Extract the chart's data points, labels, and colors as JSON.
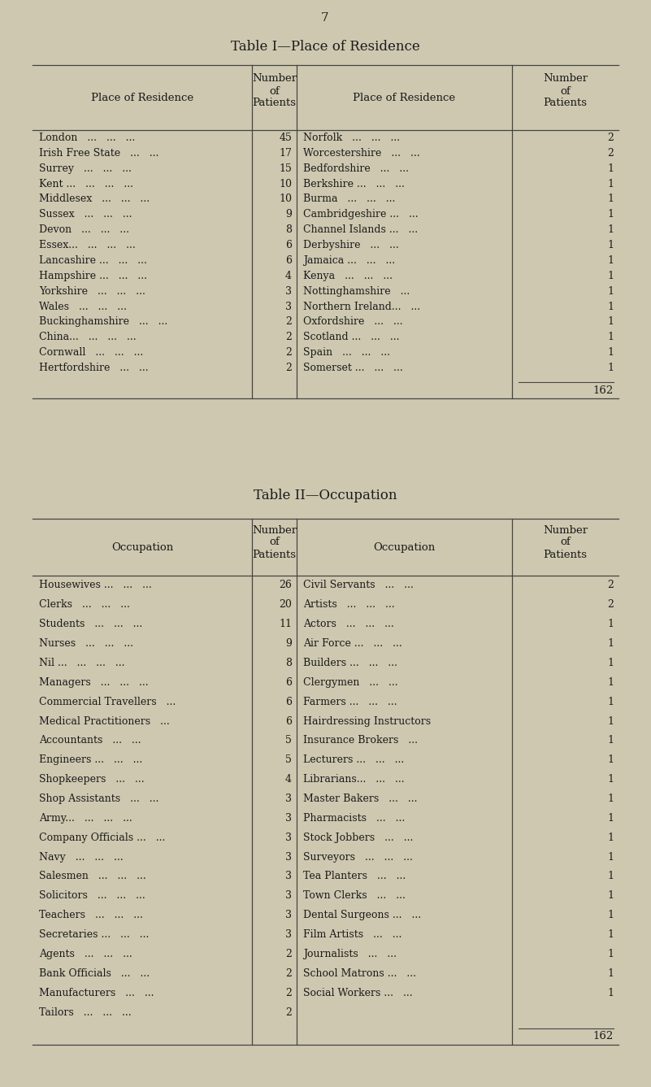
{
  "bg_color": "#cec8b0",
  "text_color": "#1a1a1a",
  "page_number": "7",
  "table1_title": "TABLE I—PLACE OF RESIDENCE",
  "table1_left": [
    [
      "London   ...   ...   ...",
      "45"
    ],
    [
      "Irish Free State   ...   ...",
      "17"
    ],
    [
      "Surrey   ...   ...   ...",
      "15"
    ],
    [
      "Kent ...   ...   ...   ...",
      "10"
    ],
    [
      "Middlesex   ...   ...   ...",
      "10"
    ],
    [
      "Sussex   ...   ...   ...",
      "9"
    ],
    [
      "Devon   ...   ...   ...",
      "8"
    ],
    [
      "Essex...   ...   ...   ...",
      "6"
    ],
    [
      "Lancashire ...   ...   ...",
      "6"
    ],
    [
      "Hampshire ...   ...   ...",
      "4"
    ],
    [
      "Yorkshire   ...   ...   ...",
      "3"
    ],
    [
      "Wales   ...   ...   ...",
      "3"
    ],
    [
      "Buckinghamshire   ...   ...",
      "2"
    ],
    [
      "China...   ...   ...   ...",
      "2"
    ],
    [
      "Cornwall   ...   ...   ...",
      "2"
    ],
    [
      "Hertfordshire   ...   ...",
      "2"
    ]
  ],
  "table1_right": [
    [
      "Norfolk   ...   ...   ...",
      "2"
    ],
    [
      "Worcestershire   ...   ...",
      "2"
    ],
    [
      "Bedfordshire   ...   ...",
      "1"
    ],
    [
      "Berkshire ...   ...   ...",
      "1"
    ],
    [
      "Burma   ...   ...   ...",
      "1"
    ],
    [
      "Cambridgeshire ...   ...",
      "1"
    ],
    [
      "Channel Islands ...   ...",
      "1"
    ],
    [
      "Derbyshire   ...   ...",
      "1"
    ],
    [
      "Jamaica ...   ...   ...",
      "1"
    ],
    [
      "Kenya   ...   ...   ...",
      "1"
    ],
    [
      "Nottinghamshire   ...",
      "1"
    ],
    [
      "Northern Ireland...   ...",
      "1"
    ],
    [
      "Oxfordshire   ...   ...",
      "1"
    ],
    [
      "Scotland ...   ...   ...",
      "1"
    ],
    [
      "Spain   ...   ...   ...",
      "1"
    ],
    [
      "Somerset ...   ...   ...",
      "1"
    ]
  ],
  "table1_total": "162",
  "table2_title": "TABLE II—OCCUPATION",
  "table2_left": [
    [
      "Housewives ...   ...   ...",
      "26"
    ],
    [
      "Clerks   ...   ...   ...",
      "20"
    ],
    [
      "Students   ...   ...   ...",
      "11"
    ],
    [
      "Nurses   ...   ...   ...",
      "9"
    ],
    [
      "Nil ...   ...   ...   ...",
      "8"
    ],
    [
      "Managers   ...   ...   ...",
      "6"
    ],
    [
      "Commercial Travellers   ...",
      "6"
    ],
    [
      "Medical Practitioners   ...",
      "6"
    ],
    [
      "Accountants   ...   ...",
      "5"
    ],
    [
      "Engineers ...   ...   ...",
      "5"
    ],
    [
      "Shopkeepers   ...   ...",
      "4"
    ],
    [
      "Shop Assistants   ...   ...",
      "3"
    ],
    [
      "Army...   ...   ...   ...",
      "3"
    ],
    [
      "Company Officials ...   ...",
      "3"
    ],
    [
      "Navy   ...   ...   ...",
      "3"
    ],
    [
      "Salesmen   ...   ...   ...",
      "3"
    ],
    [
      "Solicitors   ...   ...   ...",
      "3"
    ],
    [
      "Teachers   ...   ...   ...",
      "3"
    ],
    [
      "Secretaries ...   ...   ...",
      "3"
    ],
    [
      "Agents   ...   ...   ...",
      "2"
    ],
    [
      "Bank Officials   ...   ...",
      "2"
    ],
    [
      "Manufacturers   ...   ...",
      "2"
    ],
    [
      "Tailors   ...   ...   ...",
      "2"
    ]
  ],
  "table2_right": [
    [
      "Civil Servants   ...   ...",
      "2"
    ],
    [
      "Artists   ...   ...   ...",
      "2"
    ],
    [
      "Actors   ...   ...   ...",
      "1"
    ],
    [
      "Air Force ...   ...   ...",
      "1"
    ],
    [
      "Builders ...   ...   ...",
      "1"
    ],
    [
      "Clergymen   ...   ...",
      "1"
    ],
    [
      "Farmers ...   ...   ...",
      "1"
    ],
    [
      "Hairdressing Instructors",
      "1"
    ],
    [
      "Insurance Brokers   ...",
      "1"
    ],
    [
      "Lecturers ...   ...   ...",
      "1"
    ],
    [
      "Librarians...   ...   ...",
      "1"
    ],
    [
      "Master Bakers   ...   ...",
      "1"
    ],
    [
      "Pharmacists   ...   ...",
      "1"
    ],
    [
      "Stock Jobbers   ...   ...",
      "1"
    ],
    [
      "Surveyors   ...   ...   ...",
      "1"
    ],
    [
      "Tea Planters   ...   ...",
      "1"
    ],
    [
      "Town Clerks   ...   ...",
      "1"
    ],
    [
      "Dental Surgeons ...   ...",
      "1"
    ],
    [
      "Film Artists   ...   ...",
      "1"
    ],
    [
      "Journalists   ...   ...",
      "1"
    ],
    [
      "School Matrons ...   ...",
      "1"
    ],
    [
      "Social Workers ...   ...",
      "1"
    ]
  ],
  "table2_total": "162"
}
